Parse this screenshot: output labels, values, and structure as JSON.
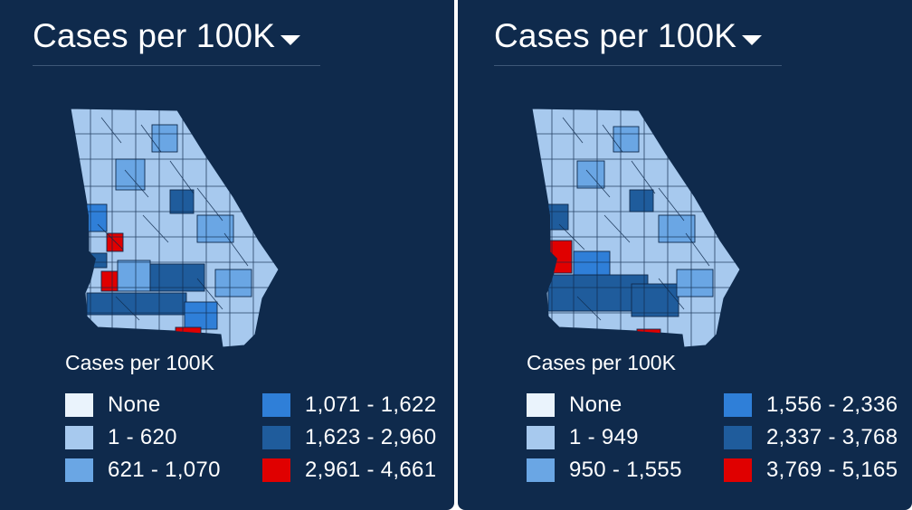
{
  "colors": {
    "background": "#0f2a4c",
    "none": "#eaf3fc",
    "bin1": "#a7c9ee",
    "bin2": "#6aa6e4",
    "bin3": "#2f7fd8",
    "bin4": "#1f5c9c",
    "bin5": "#e00000"
  },
  "panels": [
    {
      "title": "Cases per 100K",
      "legend": {
        "title": "Cases per 100K",
        "items": [
          {
            "label": "None",
            "color_key": "none"
          },
          {
            "label": "1 - 620",
            "color_key": "bin1"
          },
          {
            "label": "621 - 1,070",
            "color_key": "bin2"
          },
          {
            "label": "1,071 - 1,622",
            "color_key": "bin3"
          },
          {
            "label": "1,623 - 2,960",
            "color_key": "bin4"
          },
          {
            "label": "2,961 - 4,661",
            "color_key": "bin5"
          }
        ]
      }
    },
    {
      "title": "Cases per 100K",
      "legend": {
        "title": "Cases per 100K",
        "items": [
          {
            "label": "None",
            "color_key": "none"
          },
          {
            "label": "1 - 949",
            "color_key": "bin1"
          },
          {
            "label": "950 - 1,555",
            "color_key": "bin2"
          },
          {
            "label": "1,556 - 2,336",
            "color_key": "bin3"
          },
          {
            "label": "2,337 - 3,768",
            "color_key": "bin4"
          },
          {
            "label": "3,769 - 5,165",
            "color_key": "bin5"
          }
        ]
      }
    }
  ]
}
